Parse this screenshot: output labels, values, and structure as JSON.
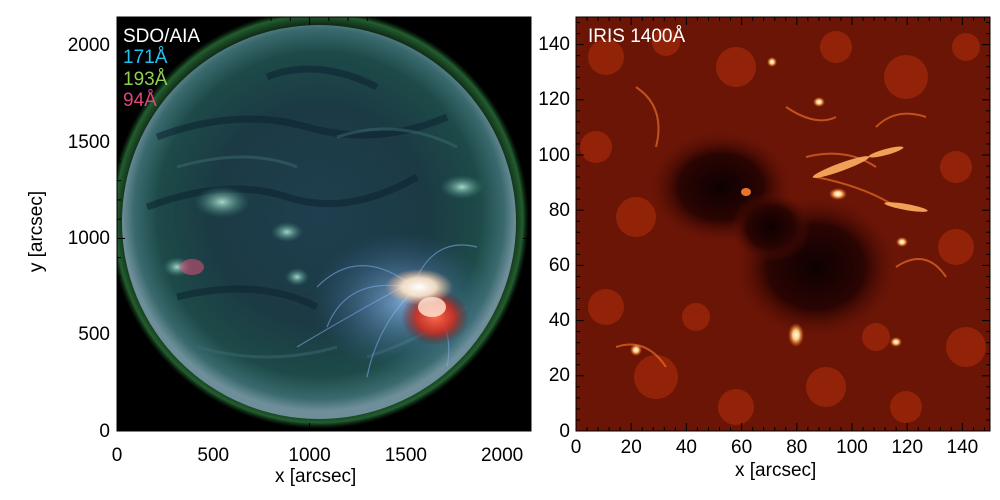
{
  "panels": [
    {
      "id": "aia",
      "instrument": "SDO/AIA",
      "channels": [
        {
          "label": "171Å",
          "color": "#1fc3f2"
        },
        {
          "label": "193Å",
          "color": "#8fd14f"
        },
        {
          "label": "94Å",
          "color": "#e0457b"
        }
      ],
      "xlabel": "x [arcsec]",
      "ylabel": "y [arcsec]",
      "xlim": [
        0,
        2150
      ],
      "ylim": [
        0,
        2150
      ],
      "xticks": [
        "0",
        "500",
        "1000",
        "1500",
        "2000"
      ],
      "yticks": [
        "0",
        "500",
        "1000",
        "1500",
        "2000"
      ]
    },
    {
      "id": "iris",
      "instrument": "IRIS 1400Å",
      "xlabel": "x [arcsec]",
      "xlim": [
        0,
        150
      ],
      "ylim": [
        0,
        150
      ],
      "xticks": [
        "0",
        "20",
        "40",
        "60",
        "80",
        "100",
        "120",
        "140"
      ],
      "yticks": [
        "0",
        "20",
        "40",
        "60",
        "80",
        "100",
        "120",
        "140"
      ]
    }
  ]
}
